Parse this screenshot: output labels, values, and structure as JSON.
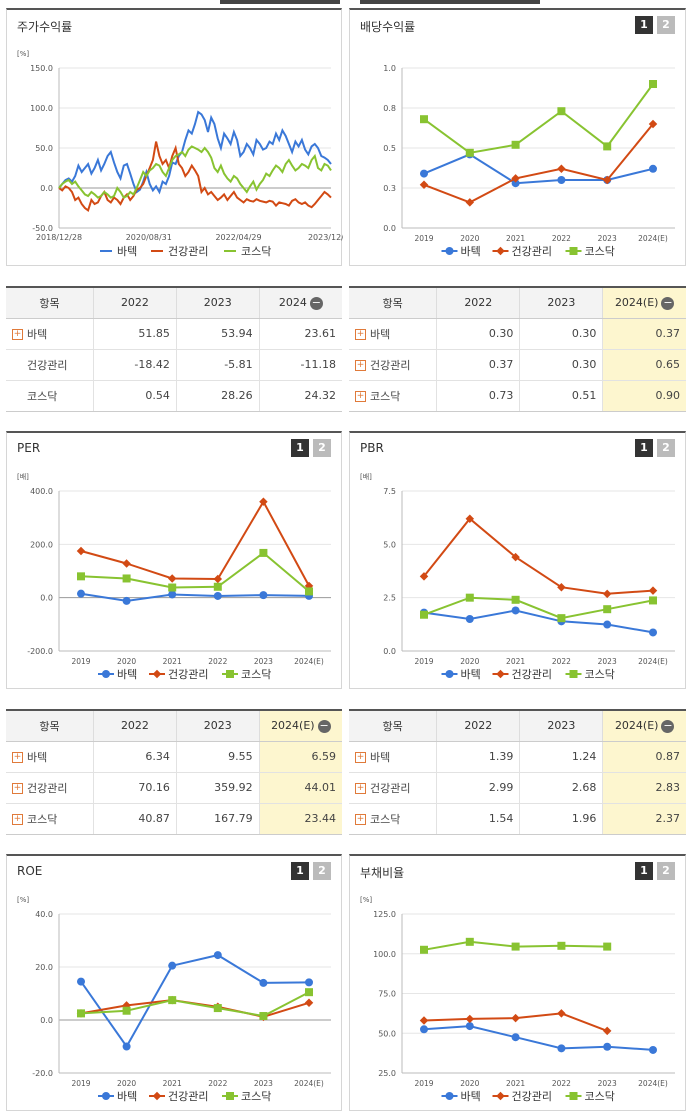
{
  "colors": {
    "batek": "#3a78d8",
    "health": "#d24a14",
    "kosdaq": "#88c331"
  },
  "legend": [
    "바텍",
    "건강관리",
    "코스닥"
  ],
  "panels": {
    "stock": {
      "title": "주가수익률"
    },
    "dividend": {
      "title": "배당수익률"
    },
    "per": {
      "title": "PER"
    },
    "pbr": {
      "title": "PBR"
    },
    "roe": {
      "title": "ROE"
    },
    "debt": {
      "title": "부채비율"
    },
    "pager": [
      "1",
      "2"
    ]
  },
  "tables": {
    "stock": {
      "headers": [
        "항목",
        "2022",
        "2023",
        "2024"
      ],
      "rows": [
        {
          "name": "바텍",
          "vals": [
            "51.85",
            "53.94",
            "23.61"
          ]
        },
        {
          "name": "건강관리",
          "vals": [
            "-18.42",
            "-5.81",
            "-11.18"
          ]
        },
        {
          "name": "코스닥",
          "vals": [
            "0.54",
            "28.26",
            "24.32"
          ]
        }
      ]
    },
    "dividend": {
      "headers": [
        "항목",
        "2022",
        "2023",
        "2024(E)"
      ],
      "rows": [
        {
          "name": "바텍",
          "vals": [
            "0.30",
            "0.30",
            "0.37"
          ]
        },
        {
          "name": "건강관리",
          "vals": [
            "0.37",
            "0.30",
            "0.65"
          ]
        },
        {
          "name": "코스닥",
          "vals": [
            "0.73",
            "0.51",
            "0.90"
          ]
        }
      ]
    },
    "per": {
      "headers": [
        "항목",
        "2022",
        "2023",
        "2024(E)"
      ],
      "rows": [
        {
          "name": "바텍",
          "vals": [
            "6.34",
            "9.55",
            "6.59"
          ]
        },
        {
          "name": "건강관리",
          "vals": [
            "70.16",
            "359.92",
            "44.01"
          ]
        },
        {
          "name": "코스닥",
          "vals": [
            "40.87",
            "167.79",
            "23.44"
          ]
        }
      ]
    },
    "pbr": {
      "headers": [
        "항목",
        "2022",
        "2023",
        "2024(E)"
      ],
      "rows": [
        {
          "name": "바텍",
          "vals": [
            "1.39",
            "1.24",
            "0.87"
          ]
        },
        {
          "name": "건강관리",
          "vals": [
            "2.99",
            "2.68",
            "2.83"
          ]
        },
        {
          "name": "코스닥",
          "vals": [
            "1.54",
            "1.96",
            "2.37"
          ]
        }
      ]
    }
  },
  "chart_data": [
    {
      "id": "stock",
      "type": "line",
      "unit": "[%]",
      "yticks": [
        "150.0",
        "100.0",
        "50.0",
        "0.0",
        "-50.0"
      ],
      "ylim": [
        -50,
        150
      ],
      "xticks": [
        "2018/12/28",
        "2020/08/31",
        "2022/04/29",
        "2023/12/28"
      ],
      "series": [
        {
          "name": "바텍",
          "values": [
            0,
            5,
            10,
            12,
            8,
            15,
            28,
            20,
            25,
            30,
            18,
            25,
            35,
            22,
            30,
            40,
            45,
            32,
            20,
            12,
            28,
            30,
            18,
            5,
            -5,
            -2,
            8,
            20,
            5,
            -3,
            2,
            -5,
            8,
            5,
            15,
            32,
            30,
            40,
            45,
            60,
            72,
            68,
            80,
            95,
            92,
            85,
            70,
            88,
            80,
            62,
            50,
            68,
            62,
            55,
            70,
            60,
            40,
            45,
            55,
            50,
            42,
            60,
            55,
            48,
            50,
            58,
            55,
            68,
            60,
            72,
            65,
            55,
            45,
            58,
            52,
            60,
            48,
            42,
            52,
            55,
            50,
            40,
            38,
            35,
            30
          ]
        },
        {
          "name": "건강관리",
          "values": [
            0,
            -3,
            2,
            0,
            -5,
            -15,
            -12,
            -20,
            -25,
            -28,
            -15,
            -20,
            -18,
            -10,
            -5,
            -15,
            -18,
            -12,
            -15,
            -20,
            -12,
            -8,
            -15,
            -10,
            -2,
            0,
            5,
            15,
            25,
            35,
            58,
            40,
            30,
            35,
            25,
            40,
            50,
            30,
            25,
            15,
            20,
            28,
            22,
            15,
            -5,
            0,
            -8,
            -5,
            -10,
            -15,
            -12,
            -8,
            -15,
            -10,
            -5,
            -12,
            -15,
            -18,
            -14,
            -16,
            -17,
            -14,
            -16,
            -17,
            -18,
            -16,
            -17,
            -22,
            -18,
            -19,
            -20,
            -22,
            -16,
            -14,
            -18,
            -20,
            -18,
            -22,
            -24,
            -20,
            -15,
            -10,
            -5,
            -8,
            -12
          ]
        },
        {
          "name": "코스닥",
          "values": [
            0,
            5,
            8,
            10,
            5,
            8,
            2,
            -3,
            -8,
            -10,
            -5,
            -8,
            -12,
            -10,
            -5,
            -8,
            -12,
            -10,
            0,
            -5,
            -12,
            -10,
            -5,
            -8,
            0,
            10,
            20,
            15,
            22,
            25,
            30,
            28,
            20,
            15,
            25,
            35,
            40,
            42,
            45,
            40,
            48,
            52,
            50,
            48,
            45,
            50,
            45,
            38,
            25,
            20,
            28,
            18,
            12,
            8,
            15,
            12,
            5,
            0,
            -5,
            2,
            8,
            -2,
            5,
            10,
            18,
            15,
            22,
            28,
            25,
            20,
            30,
            35,
            28,
            22,
            25,
            30,
            28,
            25,
            35,
            40,
            25,
            22,
            30,
            28,
            22
          ]
        }
      ]
    },
    {
      "id": "dividend",
      "type": "line",
      "unit": "",
      "yticks": [
        "1.0",
        "0.8",
        "0.5",
        "0.3",
        "0.0"
      ],
      "ylim": [
        0,
        1.0
      ],
      "categories": [
        "2019",
        "2020",
        "2021",
        "2022",
        "2023",
        "2024(E)"
      ],
      "series": [
        {
          "name": "바텍",
          "values": [
            0.34,
            0.46,
            0.28,
            0.3,
            0.3,
            0.37
          ]
        },
        {
          "name": "건강관리",
          "values": [
            0.27,
            0.16,
            0.31,
            0.37,
            0.3,
            0.65
          ]
        },
        {
          "name": "코스닥",
          "values": [
            0.68,
            0.47,
            0.52,
            0.73,
            0.51,
            0.9
          ]
        }
      ]
    },
    {
      "id": "per",
      "type": "line",
      "unit": "[배]",
      "yticks": [
        "400.0",
        "200.0",
        "0.0",
        "-200.0"
      ],
      "ylim": [
        -200,
        400
      ],
      "categories": [
        "2019",
        "2020",
        "2021",
        "2022",
        "2023",
        "2024(E)"
      ],
      "series": [
        {
          "name": "바텍",
          "values": [
            15,
            -12,
            12,
            6.34,
            9.55,
            6.59
          ]
        },
        {
          "name": "건강관리",
          "values": [
            175,
            128,
            72,
            70.16,
            359.92,
            44.01
          ]
        },
        {
          "name": "코스닥",
          "values": [
            80,
            72,
            38,
            40.87,
            167.79,
            23.44
          ]
        }
      ]
    },
    {
      "id": "pbr",
      "type": "line",
      "unit": "[배]",
      "yticks": [
        "7.5",
        "5.0",
        "2.5",
        "0.0"
      ],
      "ylim": [
        0,
        7.5
      ],
      "categories": [
        "2019",
        "2020",
        "2021",
        "2022",
        "2023",
        "2024(E)"
      ],
      "series": [
        {
          "name": "바텍",
          "values": [
            1.8,
            1.5,
            1.9,
            1.39,
            1.24,
            0.87
          ]
        },
        {
          "name": "건강관리",
          "values": [
            3.5,
            6.2,
            4.4,
            2.99,
            2.68,
            2.83
          ]
        },
        {
          "name": "코스닥",
          "values": [
            1.7,
            2.5,
            2.4,
            1.54,
            1.96,
            2.37
          ]
        }
      ]
    },
    {
      "id": "roe",
      "type": "line",
      "unit": "[%]",
      "yticks": [
        "40.0",
        "20.0",
        "0.0",
        "-20.0"
      ],
      "ylim": [
        -20,
        40
      ],
      "categories": [
        "2019",
        "2020",
        "2021",
        "2022",
        "2023",
        "2024(E)"
      ],
      "series": [
        {
          "name": "바텍",
          "values": [
            14.5,
            -10,
            20.5,
            24.5,
            14,
            14.2
          ]
        },
        {
          "name": "건강관리",
          "values": [
            2.5,
            5.5,
            7.5,
            5,
            1.2,
            6.5
          ]
        },
        {
          "name": "코스닥",
          "values": [
            2.5,
            3.5,
            7.5,
            4.5,
            1.5,
            10.5
          ]
        }
      ]
    },
    {
      "id": "debt",
      "type": "line",
      "unit": "[%]",
      "yticks": [
        "125.0",
        "100.0",
        "75.0",
        "50.0",
        "25.0"
      ],
      "ylim": [
        25,
        125
      ],
      "categories": [
        "2019",
        "2020",
        "2021",
        "2022",
        "2023",
        "2024(E)"
      ],
      "series": [
        {
          "name": "바텍",
          "values": [
            52.5,
            54.5,
            47.5,
            40.5,
            41.5,
            39.5
          ]
        },
        {
          "name": "건강관리",
          "values": [
            58,
            59,
            59.5,
            62.5,
            51.5,
            null
          ]
        },
        {
          "name": "코스닥",
          "values": [
            102.5,
            107.5,
            104.5,
            105,
            104.5,
            null
          ]
        }
      ]
    }
  ]
}
